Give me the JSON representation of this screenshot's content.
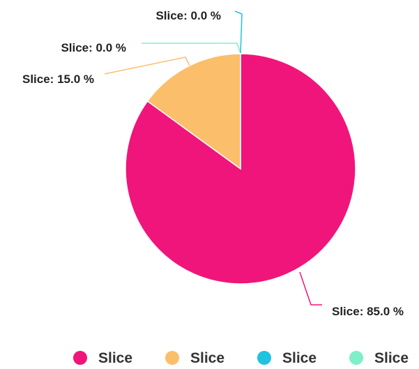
{
  "chart_data": {
    "type": "pie",
    "slices": [
      {
        "name": "Slice",
        "value": 85.0,
        "label": "Slice: 85.0 %",
        "color": "#f0157a"
      },
      {
        "name": "Slice",
        "value": 0.0,
        "label": "Slice: 0.0 %",
        "color": "#7ef0c8"
      },
      {
        "name": "Slice",
        "value": 0.0,
        "label": "Slice: 0.0 %",
        "color": "#1ec3df"
      },
      {
        "name": "Slice",
        "value": 15.0,
        "label": "Slice: 15.0 %",
        "color": "#fbbe6b"
      }
    ],
    "legend": {
      "placement": "bottom",
      "items": [
        {
          "label": "Slice",
          "color": "#f0157a"
        },
        {
          "label": "Slice",
          "color": "#fbbe6b"
        },
        {
          "label": "Slice",
          "color": "#1ec3df"
        },
        {
          "label": "Slice",
          "color": "#7ef0c8"
        }
      ]
    }
  }
}
